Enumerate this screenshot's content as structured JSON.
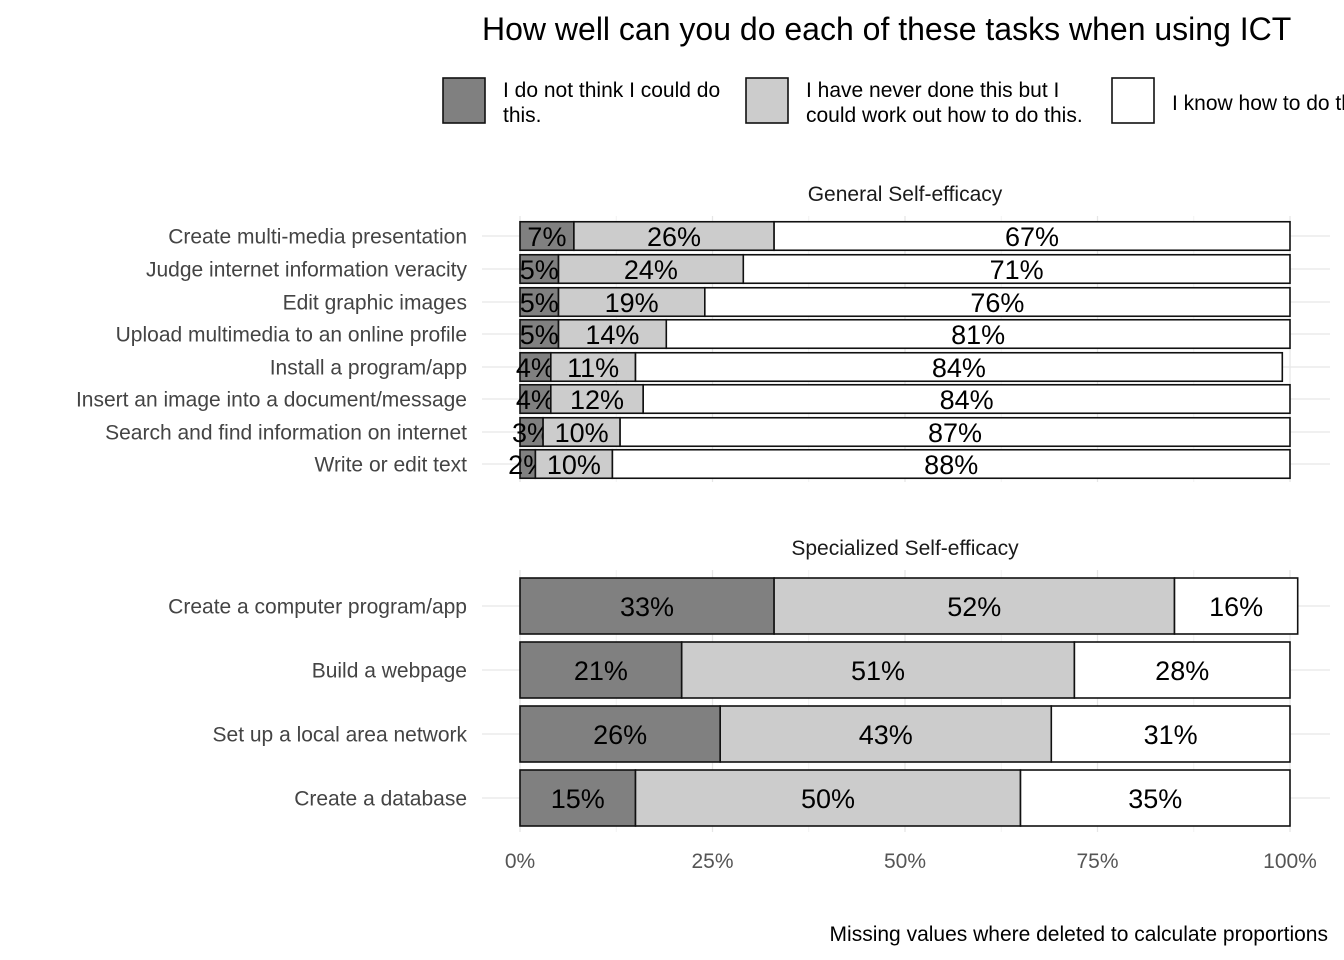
{
  "chart_data": {
    "type": "bar",
    "orientation": "horizontal",
    "stacked": true,
    "title": "How well can you do each of these tasks when using ICT",
    "caption": "Missing values where deleted to calculate proportions",
    "legend": {
      "placement": "top",
      "entries": [
        {
          "label_lines": [
            "I do not think I could do",
            "this."
          ],
          "color": "#808080"
        },
        {
          "label_lines": [
            "I have never done this but I",
            "could work out how to do this."
          ],
          "color": "#cccccc"
        },
        {
          "label_lines": [
            "I know how to do this."
          ],
          "color": "#ffffff"
        }
      ]
    },
    "xaxis": {
      "ticks": [
        "0%",
        "25%",
        "50%",
        "75%",
        "100%"
      ],
      "range": [
        0,
        100
      ]
    },
    "grid": true,
    "panels": [
      {
        "title": "General Self-efficacy",
        "categories": [
          "Create multi-media presentation",
          "Judge internet information veracity",
          "Edit graphic images",
          "Upload multimedia to an online profile",
          "Install a program/app",
          "Insert an image into a document/message",
          "Search and find information on internet",
          "Write or edit text"
        ],
        "series": [
          {
            "values": [
              7,
              5,
              5,
              5,
              4,
              4,
              3,
              2
            ]
          },
          {
            "values": [
              26,
              24,
              19,
              14,
              11,
              12,
              10,
              10
            ]
          },
          {
            "values": [
              67,
              71,
              76,
              81,
              84,
              84,
              87,
              88
            ]
          }
        ]
      },
      {
        "title": "Specialized Self-efficacy",
        "categories": [
          "Create a computer program/app",
          "Build a webpage",
          "Set up a local area network",
          "Create a database"
        ],
        "series": [
          {
            "values": [
              33,
              21,
              26,
              15
            ]
          },
          {
            "values": [
              52,
              51,
              43,
              50
            ]
          },
          {
            "values": [
              16,
              28,
              31,
              35
            ]
          }
        ]
      }
    ]
  }
}
